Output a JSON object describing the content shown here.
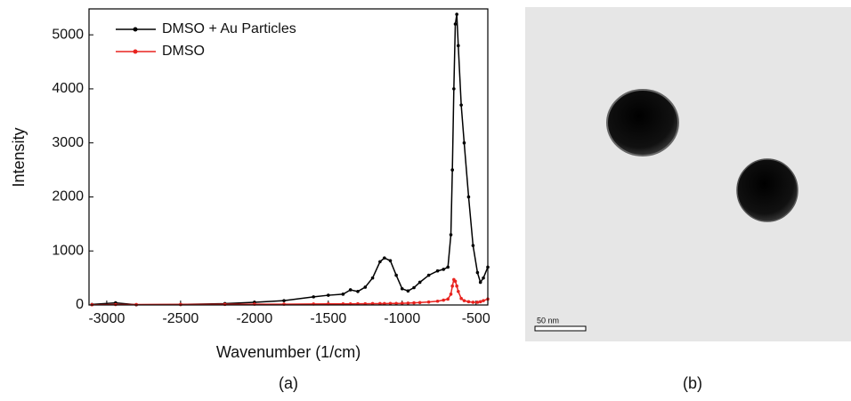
{
  "chart_data": {
    "type": "line",
    "x_label": "Wavenumber (1/cm)",
    "y_label": "Intensity",
    "x": [
      -3100,
      -2940,
      -2800,
      -2500,
      -2200,
      -2000,
      -1800,
      -1600,
      -1500,
      -1400,
      -1350,
      -1300,
      -1250,
      -1200,
      -1150,
      -1120,
      -1080,
      -1040,
      -1000,
      -960,
      -920,
      -880,
      -820,
      -760,
      -720,
      -690,
      -670,
      -660,
      -650,
      -640,
      -630,
      -620,
      -600,
      -580,
      -550,
      -520,
      -490,
      -470,
      -450,
      -420
    ],
    "series": [
      {
        "name": "DMSO + Au Particles",
        "color": "#000000",
        "values": [
          10,
          40,
          5,
          10,
          25,
          50,
          80,
          150,
          180,
          200,
          280,
          250,
          330,
          500,
          800,
          870,
          820,
          550,
          300,
          260,
          320,
          420,
          550,
          630,
          660,
          700,
          1300,
          2500,
          4000,
          5200,
          5380,
          4800,
          3700,
          3000,
          2000,
          1100,
          600,
          420,
          500,
          700
        ]
      },
      {
        "name": "DMSO",
        "color": "#e8231f",
        "values": [
          5,
          8,
          8,
          10,
          12,
          15,
          15,
          18,
          20,
          20,
          20,
          22,
          22,
          25,
          25,
          25,
          28,
          28,
          30,
          35,
          40,
          45,
          55,
          70,
          90,
          110,
          200,
          350,
          470,
          440,
          350,
          250,
          120,
          80,
          60,
          50,
          50,
          60,
          80,
          110
        ]
      }
    ],
    "xlim": [
      -3120,
      -420
    ],
    "xticks": [
      -3000,
      -2500,
      -2000,
      -1500,
      -1000,
      -500
    ],
    "ylim": [
      0,
      5480
    ],
    "yticks": [
      0,
      1000,
      2000,
      3000,
      4000,
      5000
    ],
    "legend": "top-left"
  },
  "figure": {
    "captions": [
      "(a)",
      "(b)"
    ],
    "scale_bar_label": "50 nm"
  }
}
